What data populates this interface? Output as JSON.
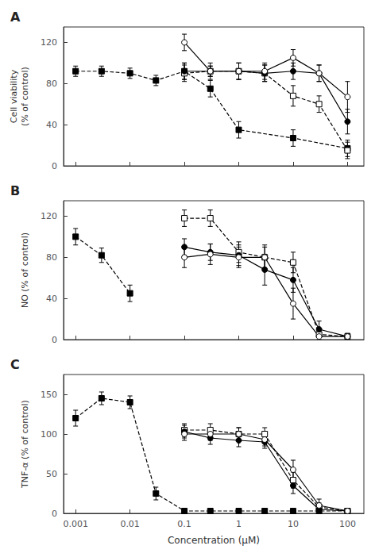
{
  "chart_data": [
    {
      "type": "line",
      "title": "A",
      "ylabel": "Cell viability\n(% of control)",
      "log": "x",
      "grid": false,
      "tick_labels": "y",
      "xlim": [
        0.0006,
        200
      ],
      "xticks": [
        0.001,
        0.01,
        0.1,
        1,
        10,
        100
      ],
      "ylim": [
        0,
        135
      ],
      "yticks": [
        0,
        40,
        80,
        120
      ],
      "series": [
        {
          "marker": "filled_square",
          "line_style": "dashed",
          "color": "black",
          "x": [
            0.001,
            0.003,
            0.01,
            0.03,
            0.1,
            0.3,
            1,
            10,
            100
          ],
          "values": [
            92,
            92,
            90,
            83,
            92,
            75,
            35,
            27,
            17
          ],
          "yerr": [
            5,
            5,
            5,
            5,
            8,
            8,
            8,
            8,
            8
          ]
        },
        {
          "marker": "open_square",
          "line_style": "dashed",
          "color": "black",
          "x": [
            0.1,
            0.3,
            1,
            3,
            10,
            30,
            100
          ],
          "values": [
            90,
            92,
            92,
            90,
            68,
            60,
            15
          ],
          "yerr": [
            8,
            5,
            8,
            8,
            10,
            8,
            8
          ]
        },
        {
          "marker": "filled_circle",
          "line_style": "solid",
          "color": "black",
          "x": [
            0.1,
            0.3,
            1,
            3,
            10,
            30,
            100
          ],
          "values": [
            92,
            92,
            92,
            90,
            92,
            90,
            43
          ],
          "yerr": [
            8,
            5,
            8,
            8,
            8,
            8,
            12
          ]
        },
        {
          "marker": "open_circle",
          "line_style": "solid",
          "color": "black",
          "x": [
            0.1,
            0.3,
            1,
            3,
            10,
            30,
            100
          ],
          "values": [
            120,
            92,
            92,
            92,
            105,
            90,
            67
          ],
          "yerr": [
            8,
            8,
            8,
            8,
            8,
            8,
            15
          ]
        }
      ]
    },
    {
      "type": "line",
      "title": "B",
      "ylabel": "NO (% of control)",
      "log": "x",
      "grid": false,
      "tick_labels": "y",
      "xlim": [
        0.0006,
        200
      ],
      "xticks": [
        0.001,
        0.01,
        0.1,
        1,
        10,
        100
      ],
      "ylim": [
        0,
        135
      ],
      "yticks": [
        0,
        40,
        80,
        120
      ],
      "series": [
        {
          "marker": "filled_square",
          "line_style": "dashed",
          "color": "black",
          "x": [
            0.001,
            0.003,
            0.01
          ],
          "values": [
            100,
            82,
            45
          ],
          "yerr": [
            8,
            7,
            8
          ]
        },
        {
          "marker": "open_square",
          "line_style": "dashed",
          "color": "black",
          "x": [
            0.1,
            0.3,
            1,
            3,
            10,
            30,
            100
          ],
          "values": [
            118,
            118,
            85,
            80,
            75,
            5,
            3
          ],
          "yerr": [
            8,
            8,
            10,
            12,
            10,
            3,
            2
          ]
        },
        {
          "marker": "filled_circle",
          "line_style": "solid",
          "color": "black",
          "x": [
            0.1,
            0.3,
            1,
            3,
            10,
            30,
            100
          ],
          "values": [
            90,
            85,
            82,
            68,
            58,
            10,
            3
          ],
          "yerr": [
            8,
            8,
            10,
            15,
            12,
            8,
            3
          ]
        },
        {
          "marker": "open_circle",
          "line_style": "solid",
          "color": "black",
          "x": [
            0.1,
            0.3,
            1,
            3,
            10,
            30,
            100
          ],
          "values": [
            80,
            83,
            80,
            80,
            35,
            3,
            3
          ],
          "yerr": [
            10,
            10,
            10,
            10,
            15,
            3,
            3
          ]
        }
      ]
    },
    {
      "type": "line",
      "title": "C",
      "ylabel": "TNF-α (% of control)",
      "xlabel": "Concentration (μM)",
      "log": "x",
      "grid": false,
      "xlim": [
        0.0006,
        200
      ],
      "xticks": [
        0.001,
        0.01,
        0.1,
        1,
        10,
        100
      ],
      "ylim": [
        0,
        175
      ],
      "yticks": [
        0,
        50,
        100,
        150
      ],
      "series": [
        {
          "marker": "filled_square",
          "line_style": "dashed",
          "color": "black",
          "x": [
            0.001,
            0.003,
            0.01,
            0.03,
            0.1,
            0.3,
            1,
            3,
            10,
            30,
            100
          ],
          "values": [
            120,
            145,
            140,
            25,
            3,
            3,
            3,
            3,
            3,
            3,
            3
          ],
          "yerr": [
            10,
            8,
            8,
            8,
            2,
            2,
            2,
            2,
            2,
            2,
            2
          ]
        },
        {
          "marker": "open_square",
          "line_style": "dashed",
          "color": "black",
          "x": [
            0.1,
            0.3,
            1,
            3,
            10,
            30,
            100
          ],
          "values": [
            105,
            105,
            100,
            100,
            42,
            8,
            3
          ],
          "yerr": [
            8,
            8,
            8,
            8,
            10,
            5,
            3
          ]
        },
        {
          "marker": "filled_circle",
          "line_style": "solid",
          "color": "black",
          "x": [
            0.1,
            0.3,
            1,
            3,
            10,
            30,
            100
          ],
          "values": [
            103,
            95,
            92,
            90,
            35,
            5,
            3
          ],
          "yerr": [
            8,
            8,
            8,
            8,
            10,
            5,
            3
          ]
        },
        {
          "marker": "open_circle",
          "line_style": "solid",
          "color": "black",
          "x": [
            0.1,
            0.3,
            1,
            3,
            10,
            30,
            100
          ],
          "values": [
            100,
            100,
            100,
            93,
            55,
            10,
            3
          ],
          "yerr": [
            8,
            8,
            8,
            8,
            12,
            8,
            3
          ]
        }
      ]
    }
  ]
}
